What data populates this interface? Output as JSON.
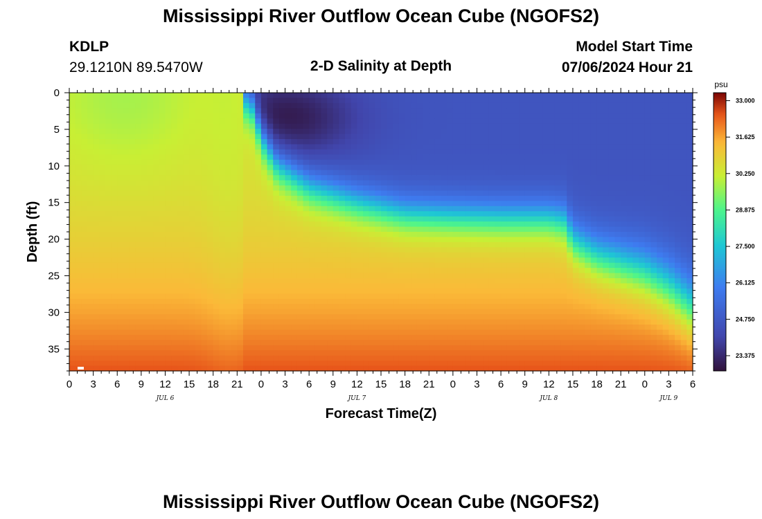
{
  "page": {
    "title_top": "Mississippi River Outflow Ocean Cube (NGOFS2)",
    "title_bottom": "Mississippi River Outflow Ocean Cube (NGOFS2)",
    "station": "KDLP",
    "location": "29.1210N  89.5470W",
    "subtitle": "2-D Salinity at Depth",
    "start_label": "Model Start Time",
    "start_value": "07/06/2024 Hour 21"
  },
  "chart_data": {
    "type": "heatmap",
    "title": "2-D Salinity at Depth",
    "xlabel": "Forecast Time(Z)",
    "ylabel": "Depth (ft)",
    "x_range": [
      0,
      78
    ],
    "x_units": "hours from 2024-07-06 00Z",
    "x_tick_labels": [
      "0",
      "3",
      "6",
      "9",
      "12",
      "15",
      "18",
      "21",
      "0",
      "3",
      "6",
      "9",
      "12",
      "15",
      "18",
      "21",
      "0",
      "3",
      "6",
      "9",
      "12",
      "15",
      "18",
      "21",
      "0",
      "3",
      "6"
    ],
    "day_labels": [
      {
        "label": "JUL 6",
        "at_hour": 12
      },
      {
        "label": "JUL 7",
        "at_hour": 36
      },
      {
        "label": "JUL 8",
        "at_hour": 60
      },
      {
        "label": "JUL 9",
        "at_hour": 75
      }
    ],
    "y_range": [
      0,
      38
    ],
    "y_inverted": true,
    "y_ticks": [
      0,
      5,
      10,
      15,
      20,
      25,
      30,
      35
    ],
    "colorbar": {
      "unit": "psu",
      "min": 22.8,
      "max": 33.3,
      "tick_labels": [
        "33.000",
        "31.625",
        "30.250",
        "28.875",
        "27.500",
        "26.125",
        "24.750",
        "23.375"
      ],
      "tick_values": [
        33.0,
        31.625,
        30.25,
        28.875,
        27.5,
        26.125,
        24.75,
        23.375
      ]
    },
    "colormap": {
      "stops": [
        0.0,
        0.12,
        0.3,
        0.45,
        0.58,
        0.7,
        0.82,
        0.92,
        1.0
      ],
      "colors": [
        "#30123b",
        "#4145ab",
        "#3e7cf0",
        "#1ec7d4",
        "#4df58b",
        "#c8ef34",
        "#fbb938",
        "#e8571b",
        "#7a0403"
      ]
    },
    "series": {
      "halocline_depth_ft_by_hour": [
        [
          0,
          0
        ],
        [
          21,
          0
        ],
        [
          23,
          2
        ],
        [
          24,
          6
        ],
        [
          26,
          10
        ],
        [
          30,
          13
        ],
        [
          36,
          15
        ],
        [
          42,
          16.5
        ],
        [
          48,
          16.8
        ],
        [
          54,
          17
        ],
        [
          60,
          17
        ],
        [
          62,
          17.5
        ],
        [
          63,
          20
        ],
        [
          66,
          22
        ],
        [
          72,
          24
        ],
        [
          75,
          26
        ],
        [
          78,
          29
        ]
      ],
      "fresh_core": {
        "hour": 27,
        "depth_ft": 3.5,
        "salinity_psu": 23.0
      },
      "surface_salinity_psu_0_to_21h": 29.8,
      "bottom_salinity_psu": 32.5
    }
  }
}
